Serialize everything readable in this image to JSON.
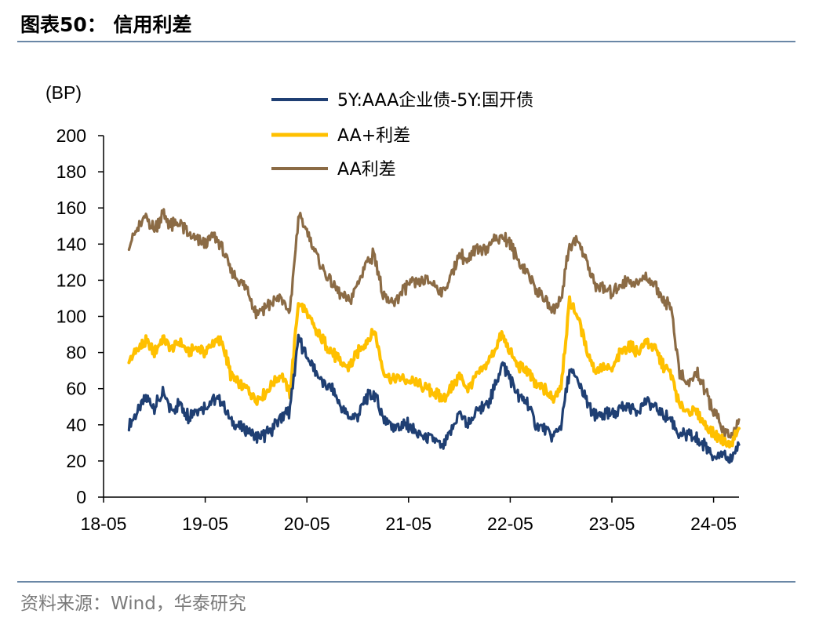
{
  "header": {
    "title": "图表50：  信用利差"
  },
  "footer": {
    "source": "资料来源：Wind，华泰研究"
  },
  "colors": {
    "aaa": "#1f3f73",
    "aa_plus": "#ffc000",
    "aa": "#8b6b45",
    "rule": "#6a87a6"
  },
  "chart_data": {
    "type": "line",
    "title": "",
    "ylabel": "(BP)",
    "xlabel": "",
    "ylim": [
      0,
      200
    ],
    "yticks": [
      0,
      20,
      40,
      60,
      80,
      100,
      120,
      140,
      160,
      180,
      200
    ],
    "xlim": [
      "2018-05",
      "2024-08"
    ],
    "xticks": [
      "2018-05",
      "2019-05",
      "2020-05",
      "2021-05",
      "2022-05",
      "2023-05",
      "2024-05"
    ],
    "xtick_labels": [
      "18-05",
      "19-05",
      "20-05",
      "21-05",
      "22-05",
      "23-05",
      "24-05"
    ],
    "grid": false,
    "legend_position": "top",
    "series": [
      {
        "name": "5Y:AAA企业债-5Y:国开债",
        "color": "#1f3f73",
        "points": [
          [
            "2018-08",
            40
          ],
          [
            "2018-09",
            47
          ],
          [
            "2018-10",
            55
          ],
          [
            "2018-11",
            50
          ],
          [
            "2018-12",
            57
          ],
          [
            "2019-01",
            48
          ],
          [
            "2019-02",
            52
          ],
          [
            "2019-03",
            45
          ],
          [
            "2019-04",
            49
          ],
          [
            "2019-05",
            50
          ],
          [
            "2019-06",
            54
          ],
          [
            "2019-07",
            53
          ],
          [
            "2019-08",
            42
          ],
          [
            "2019-09",
            39
          ],
          [
            "2019-10",
            37
          ],
          [
            "2019-11",
            33
          ],
          [
            "2019-12",
            34
          ],
          [
            "2020-01",
            38
          ],
          [
            "2020-02",
            45
          ],
          [
            "2020-03",
            48
          ],
          [
            "2020-04",
            88
          ],
          [
            "2020-05",
            78
          ],
          [
            "2020-06",
            70
          ],
          [
            "2020-07",
            62
          ],
          [
            "2020-08",
            60
          ],
          [
            "2020-09",
            50
          ],
          [
            "2020-10",
            44
          ],
          [
            "2020-11",
            45
          ],
          [
            "2020-12",
            55
          ],
          [
            "2021-01",
            57
          ],
          [
            "2021-02",
            44
          ],
          [
            "2021-03",
            40
          ],
          [
            "2021-04",
            39
          ],
          [
            "2021-05",
            40
          ],
          [
            "2021-06",
            35
          ],
          [
            "2021-07",
            33
          ],
          [
            "2021-08",
            32
          ],
          [
            "2021-09",
            27
          ],
          [
            "2021-10",
            36
          ],
          [
            "2021-11",
            47
          ],
          [
            "2021-12",
            40
          ],
          [
            "2022-01",
            47
          ],
          [
            "2022-02",
            50
          ],
          [
            "2022-03",
            58
          ],
          [
            "2022-04",
            74
          ],
          [
            "2022-05",
            66
          ],
          [
            "2022-06",
            55
          ],
          [
            "2022-07",
            53
          ],
          [
            "2022-08",
            40
          ],
          [
            "2022-09",
            38
          ],
          [
            "2022-10",
            33
          ],
          [
            "2022-11",
            40
          ],
          [
            "2022-12",
            70
          ],
          [
            "2023-01",
            64
          ],
          [
            "2023-02",
            53
          ],
          [
            "2023-03",
            44
          ],
          [
            "2023-04",
            46
          ],
          [
            "2023-05",
            45
          ],
          [
            "2023-06",
            50
          ],
          [
            "2023-07",
            50
          ],
          [
            "2023-08",
            48
          ],
          [
            "2023-09",
            53
          ],
          [
            "2023-10",
            50
          ],
          [
            "2023-11",
            46
          ],
          [
            "2023-12",
            43
          ],
          [
            "2024-01",
            34
          ],
          [
            "2024-02",
            34
          ],
          [
            "2024-03",
            32
          ],
          [
            "2024-04",
            28
          ],
          [
            "2024-05",
            24
          ],
          [
            "2024-06",
            22
          ],
          [
            "2024-07",
            21
          ],
          [
            "2024-08",
            29
          ]
        ]
      },
      {
        "name": "AA+利差",
        "color": "#ffc000",
        "points": [
          [
            "2018-08",
            75
          ],
          [
            "2018-09",
            82
          ],
          [
            "2018-10",
            86
          ],
          [
            "2018-11",
            80
          ],
          [
            "2018-12",
            88
          ],
          [
            "2019-01",
            82
          ],
          [
            "2019-02",
            86
          ],
          [
            "2019-03",
            80
          ],
          [
            "2019-04",
            83
          ],
          [
            "2019-05",
            80
          ],
          [
            "2019-06",
            86
          ],
          [
            "2019-07",
            86
          ],
          [
            "2019-08",
            68
          ],
          [
            "2019-09",
            62
          ],
          [
            "2019-10",
            60
          ],
          [
            "2019-11",
            54
          ],
          [
            "2019-12",
            57
          ],
          [
            "2020-01",
            63
          ],
          [
            "2020-02",
            68
          ],
          [
            "2020-03",
            57
          ],
          [
            "2020-04",
            108
          ],
          [
            "2020-05",
            102
          ],
          [
            "2020-06",
            92
          ],
          [
            "2020-07",
            86
          ],
          [
            "2020-08",
            80
          ],
          [
            "2020-09",
            74
          ],
          [
            "2020-10",
            72
          ],
          [
            "2020-11",
            80
          ],
          [
            "2020-12",
            86
          ],
          [
            "2021-01",
            92
          ],
          [
            "2021-02",
            70
          ],
          [
            "2021-03",
            65
          ],
          [
            "2021-04",
            66
          ],
          [
            "2021-05",
            64
          ],
          [
            "2021-06",
            63
          ],
          [
            "2021-07",
            60
          ],
          [
            "2021-08",
            58
          ],
          [
            "2021-09",
            54
          ],
          [
            "2021-10",
            60
          ],
          [
            "2021-11",
            67
          ],
          [
            "2021-12",
            60
          ],
          [
            "2022-01",
            67
          ],
          [
            "2022-02",
            72
          ],
          [
            "2022-03",
            80
          ],
          [
            "2022-04",
            90
          ],
          [
            "2022-05",
            80
          ],
          [
            "2022-06",
            72
          ],
          [
            "2022-07",
            70
          ],
          [
            "2022-08",
            62
          ],
          [
            "2022-09",
            60
          ],
          [
            "2022-10",
            54
          ],
          [
            "2022-11",
            62
          ],
          [
            "2022-12",
            108
          ],
          [
            "2023-01",
            100
          ],
          [
            "2023-02",
            82
          ],
          [
            "2023-03",
            70
          ],
          [
            "2023-04",
            72
          ],
          [
            "2023-05",
            70
          ],
          [
            "2023-06",
            80
          ],
          [
            "2023-07",
            84
          ],
          [
            "2023-08",
            80
          ],
          [
            "2023-09",
            86
          ],
          [
            "2023-10",
            83
          ],
          [
            "2023-11",
            73
          ],
          [
            "2023-12",
            68
          ],
          [
            "2024-01",
            50
          ],
          [
            "2024-02",
            48
          ],
          [
            "2024-03",
            47
          ],
          [
            "2024-04",
            40
          ],
          [
            "2024-05",
            35
          ],
          [
            "2024-06",
            32
          ],
          [
            "2024-07",
            29
          ],
          [
            "2024-08",
            38
          ]
        ]
      },
      {
        "name": "AA利差",
        "color": "#8b6b45",
        "points": [
          [
            "2018-08",
            140
          ],
          [
            "2018-09",
            148
          ],
          [
            "2018-10",
            155
          ],
          [
            "2018-11",
            148
          ],
          [
            "2018-12",
            157
          ],
          [
            "2019-01",
            150
          ],
          [
            "2019-02",
            152
          ],
          [
            "2019-03",
            145
          ],
          [
            "2019-04",
            142
          ],
          [
            "2019-05",
            140
          ],
          [
            "2019-06",
            145
          ],
          [
            "2019-07",
            138
          ],
          [
            "2019-08",
            125
          ],
          [
            "2019-09",
            120
          ],
          [
            "2019-10",
            115
          ],
          [
            "2019-11",
            102
          ],
          [
            "2019-12",
            105
          ],
          [
            "2020-01",
            108
          ],
          [
            "2020-02",
            110
          ],
          [
            "2020-03",
            102
          ],
          [
            "2020-04",
            155
          ],
          [
            "2020-05",
            148
          ],
          [
            "2020-06",
            135
          ],
          [
            "2020-07",
            125
          ],
          [
            "2020-08",
            118
          ],
          [
            "2020-09",
            112
          ],
          [
            "2020-10",
            108
          ],
          [
            "2020-11",
            118
          ],
          [
            "2020-12",
            130
          ],
          [
            "2021-01",
            135
          ],
          [
            "2021-02",
            110
          ],
          [
            "2021-03",
            107
          ],
          [
            "2021-04",
            112
          ],
          [
            "2021-05",
            118
          ],
          [
            "2021-06",
            118
          ],
          [
            "2021-07",
            120
          ],
          [
            "2021-08",
            118
          ],
          [
            "2021-09",
            113
          ],
          [
            "2021-10",
            122
          ],
          [
            "2021-11",
            135
          ],
          [
            "2021-12",
            130
          ],
          [
            "2022-01",
            137
          ],
          [
            "2022-02",
            138
          ],
          [
            "2022-03",
            142
          ],
          [
            "2022-04",
            145
          ],
          [
            "2022-05",
            140
          ],
          [
            "2022-06",
            130
          ],
          [
            "2022-07",
            125
          ],
          [
            "2022-08",
            115
          ],
          [
            "2022-09",
            110
          ],
          [
            "2022-10",
            103
          ],
          [
            "2022-11",
            110
          ],
          [
            "2022-12",
            140
          ],
          [
            "2023-01",
            142
          ],
          [
            "2023-02",
            130
          ],
          [
            "2023-03",
            118
          ],
          [
            "2023-04",
            115
          ],
          [
            "2023-05",
            113
          ],
          [
            "2023-06",
            118
          ],
          [
            "2023-07",
            120
          ],
          [
            "2023-08",
            118
          ],
          [
            "2023-09",
            122
          ],
          [
            "2023-10",
            118
          ],
          [
            "2023-11",
            110
          ],
          [
            "2023-12",
            105
          ],
          [
            "2024-01",
            68
          ],
          [
            "2024-02",
            62
          ],
          [
            "2024-03",
            70
          ],
          [
            "2024-04",
            58
          ],
          [
            "2024-05",
            48
          ],
          [
            "2024-06",
            38
          ],
          [
            "2024-07",
            32
          ],
          [
            "2024-08",
            43
          ]
        ]
      }
    ]
  }
}
